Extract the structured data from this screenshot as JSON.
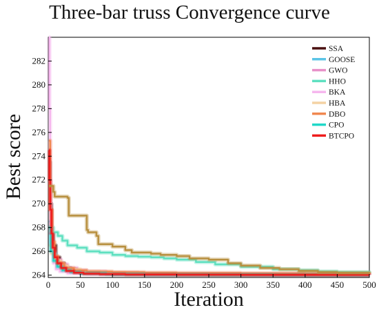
{
  "chart_data": {
    "type": "line",
    "title": "Three-bar truss Convergence curve",
    "xlabel": "Iteration",
    "ylabel": "Best score",
    "xlim": [
      0,
      500
    ],
    "ylim": [
      263.8,
      284
    ],
    "xticks": [
      0,
      50,
      100,
      150,
      200,
      250,
      300,
      350,
      400,
      450,
      500
    ],
    "yticks": [
      264,
      266,
      268,
      270,
      272,
      274,
      276,
      278,
      280,
      282
    ],
    "legend_position": "top-right",
    "series": [
      {
        "name": "SSA",
        "color": "#4a1010",
        "x": [
          1,
          3,
          5,
          8,
          12,
          18,
          25,
          35,
          50,
          100,
          150,
          200,
          300,
          400,
          500
        ],
        "y": [
          273.5,
          270.0,
          267.5,
          266.5,
          265.5,
          265.0,
          264.6,
          264.3,
          264.15,
          264.07,
          264.05,
          264.04,
          264.03,
          264.02,
          264.02
        ]
      },
      {
        "name": "GOOSE",
        "color": "#5bc4e6",
        "x": [
          1,
          4,
          8,
          12,
          18,
          25,
          35,
          50,
          80,
          150,
          250,
          350,
          500
        ],
        "y": [
          268.5,
          266.5,
          265.8,
          265.2,
          264.7,
          264.4,
          264.25,
          264.15,
          264.1,
          264.06,
          264.05,
          264.04,
          264.03
        ]
      },
      {
        "name": "GWO",
        "color": "#e890c8",
        "x": [
          1,
          5,
          10,
          20,
          30,
          45,
          60,
          90,
          140,
          200,
          300,
          400,
          500
        ],
        "y": [
          267.5,
          266.0,
          265.3,
          264.9,
          264.6,
          264.4,
          264.3,
          264.2,
          264.15,
          264.12,
          264.1,
          264.08,
          264.06
        ]
      },
      {
        "name": "HHO",
        "color": "#5ee0c0",
        "x": [
          1,
          8,
          15,
          22,
          30,
          45,
          60,
          80,
          100,
          120,
          140,
          160,
          180,
          200,
          230,
          260,
          300,
          350,
          390,
          420,
          450,
          500
        ],
        "y": [
          268.0,
          267.6,
          267.3,
          266.9,
          266.5,
          266.3,
          266.0,
          265.9,
          265.7,
          265.6,
          265.55,
          265.5,
          265.4,
          265.3,
          265.1,
          264.9,
          264.7,
          264.5,
          264.4,
          264.3,
          264.25,
          264.2
        ]
      },
      {
        "name": "BKA",
        "color": "#f6b7ee",
        "x": [
          1,
          2,
          3,
          4,
          6,
          8,
          12,
          18,
          30,
          60,
          150,
          300,
          500
        ],
        "y": [
          284.0,
          278.0,
          272.0,
          268.0,
          266.0,
          265.0,
          264.5,
          264.3,
          264.15,
          264.1,
          264.06,
          264.04,
          264.03
        ]
      },
      {
        "name": "HBA",
        "color": "#f4d2a4",
        "x": [
          1,
          5,
          10,
          20,
          30,
          50,
          80,
          120,
          200,
          300,
          400,
          500
        ],
        "y": [
          266.5,
          265.8,
          265.2,
          264.8,
          264.5,
          264.3,
          264.2,
          264.15,
          264.1,
          264.08,
          264.07,
          264.06
        ]
      },
      {
        "name": "DBO",
        "color": "#f08850",
        "x": [
          1,
          3,
          6,
          10,
          15,
          25,
          40,
          60,
          100,
          150,
          200,
          300,
          400,
          500
        ],
        "y": [
          275.3,
          269.5,
          266.8,
          265.6,
          265.0,
          264.6,
          264.4,
          264.3,
          264.25,
          264.2,
          264.18,
          264.15,
          264.12,
          264.1
        ]
      },
      {
        "name": "CPO",
        "color": "#20d8c8",
        "x": [
          1,
          4,
          8,
          14,
          22,
          35,
          50,
          90,
          150,
          250,
          350,
          500
        ],
        "y": [
          268.0,
          266.0,
          265.2,
          264.7,
          264.4,
          264.25,
          264.15,
          264.08,
          264.05,
          264.03,
          264.02,
          264.02
        ]
      },
      {
        "name": "BTCPO",
        "color": "#ee1c1c",
        "x": [
          1,
          2,
          3,
          5,
          7,
          10,
          14,
          20,
          28,
          40,
          55,
          80,
          120,
          200,
          300,
          500
        ],
        "y": [
          274.5,
          272.0,
          269.5,
          267.5,
          266.3,
          265.5,
          265.0,
          264.6,
          264.35,
          264.2,
          264.12,
          264.08,
          264.05,
          264.03,
          264.02,
          264.01
        ]
      },
      {
        "name": "",
        "color": "#b89040",
        "x": [
          1,
          8,
          10,
          30,
          32,
          50,
          60,
          62,
          75,
          78,
          100,
          120,
          130,
          140,
          160,
          175,
          200,
          220,
          250,
          280,
          300,
          330,
          360,
          390,
          420,
          450,
          500
        ],
        "y": [
          271.5,
          271.0,
          270.6,
          270.5,
          269.0,
          269.0,
          267.8,
          267.6,
          267.3,
          266.6,
          266.4,
          266.1,
          265.9,
          265.9,
          265.8,
          265.7,
          265.6,
          265.4,
          265.3,
          265.0,
          264.8,
          264.6,
          264.5,
          264.35,
          264.25,
          264.2,
          264.15
        ]
      }
    ]
  }
}
